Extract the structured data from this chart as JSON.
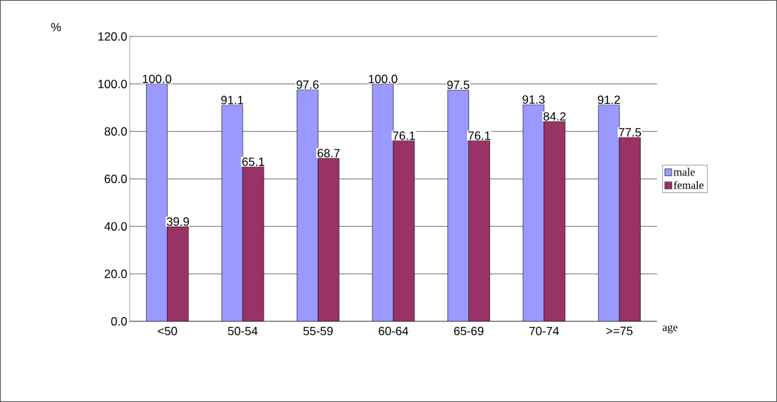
{
  "chart_data": {
    "type": "bar",
    "xlabel": "age",
    "ylabel": "%",
    "categories": [
      "<50",
      "50-54",
      "55-59",
      "60-64",
      "65-69",
      "70-74",
      ">=75"
    ],
    "series": [
      {
        "name": "male",
        "color": "#9999ff",
        "values": [
          100.0,
          91.1,
          97.6,
          100.0,
          97.5,
          91.3,
          91.2
        ],
        "value_labels": [
          "100.0",
          "91.1",
          "97.6",
          "100.0",
          "97.5",
          "91.3",
          "91.2"
        ]
      },
      {
        "name": "female",
        "color": "#993366",
        "values": [
          39.9,
          65.1,
          68.7,
          76.1,
          76.1,
          84.2,
          77.5
        ],
        "value_labels": [
          "39.9",
          "65.1",
          "68.7",
          "76.1",
          "76.1",
          "84.2",
          "77.5"
        ]
      }
    ],
    "ylim": [
      0,
      120
    ],
    "yticks": [
      {
        "value": 0,
        "label": "0.0"
      },
      {
        "value": 20,
        "label": "20.0"
      },
      {
        "value": 40,
        "label": "40.0"
      },
      {
        "value": 60,
        "label": "60.0"
      },
      {
        "value": 80,
        "label": "80.0"
      },
      {
        "value": 100,
        "label": "100.0"
      },
      {
        "value": 120,
        "label": "120.0"
      }
    ],
    "grid": "y",
    "legend": "right"
  }
}
